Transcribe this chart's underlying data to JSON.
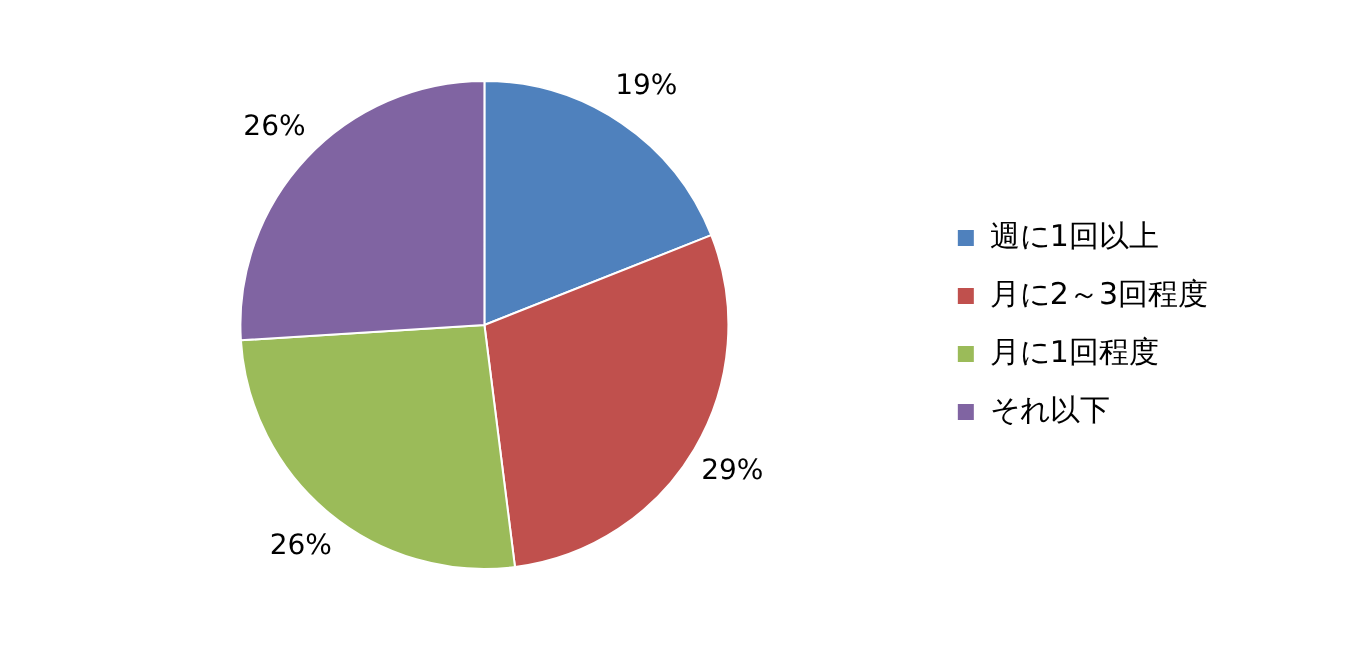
{
  "chart_data": {
    "type": "pie",
    "categories": [
      "週に1回以上",
      "月に2～3回程度",
      "月に1回程度",
      "それ以下"
    ],
    "values": [
      19,
      29,
      26,
      26
    ],
    "colors": [
      "#4f81bd",
      "#c0504d",
      "#9bbb59",
      "#8064a2"
    ],
    "value_labels": [
      "19%",
      "29%",
      "26%",
      "26%"
    ],
    "legend": "right"
  }
}
